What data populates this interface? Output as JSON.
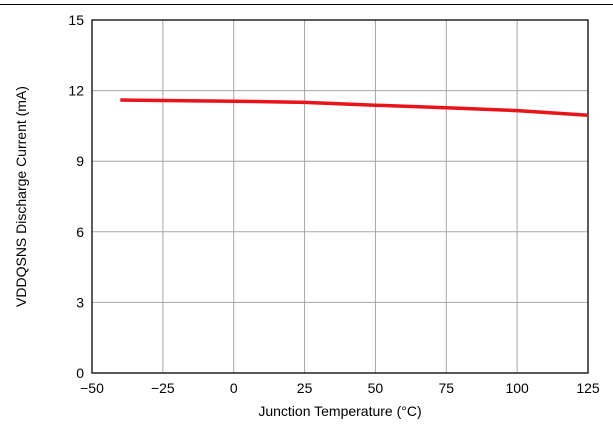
{
  "chart_data": {
    "type": "line",
    "title": "",
    "xlabel": "Junction Temperature (°C)",
    "ylabel": "VDDQSNS Discharge Current (mA)",
    "xlim": [
      -50,
      125
    ],
    "ylim": [
      0,
      15
    ],
    "x_ticks": [
      "−50",
      "−25",
      "0",
      "25",
      "50",
      "75",
      "100",
      "125"
    ],
    "y_ticks": [
      "0",
      "3",
      "6",
      "9",
      "12",
      "15"
    ],
    "x_tick_values": [
      -50,
      -25,
      0,
      25,
      50,
      75,
      100,
      125
    ],
    "y_tick_values": [
      0,
      3,
      6,
      9,
      12,
      15
    ],
    "grid": true,
    "series": [
      {
        "color": "#e8141a",
        "x": [
          -40,
          -25,
          0,
          25,
          50,
          75,
          100,
          125
        ],
        "y": [
          11.6,
          11.58,
          11.55,
          11.5,
          11.38,
          11.27,
          11.15,
          10.95
        ]
      }
    ]
  }
}
